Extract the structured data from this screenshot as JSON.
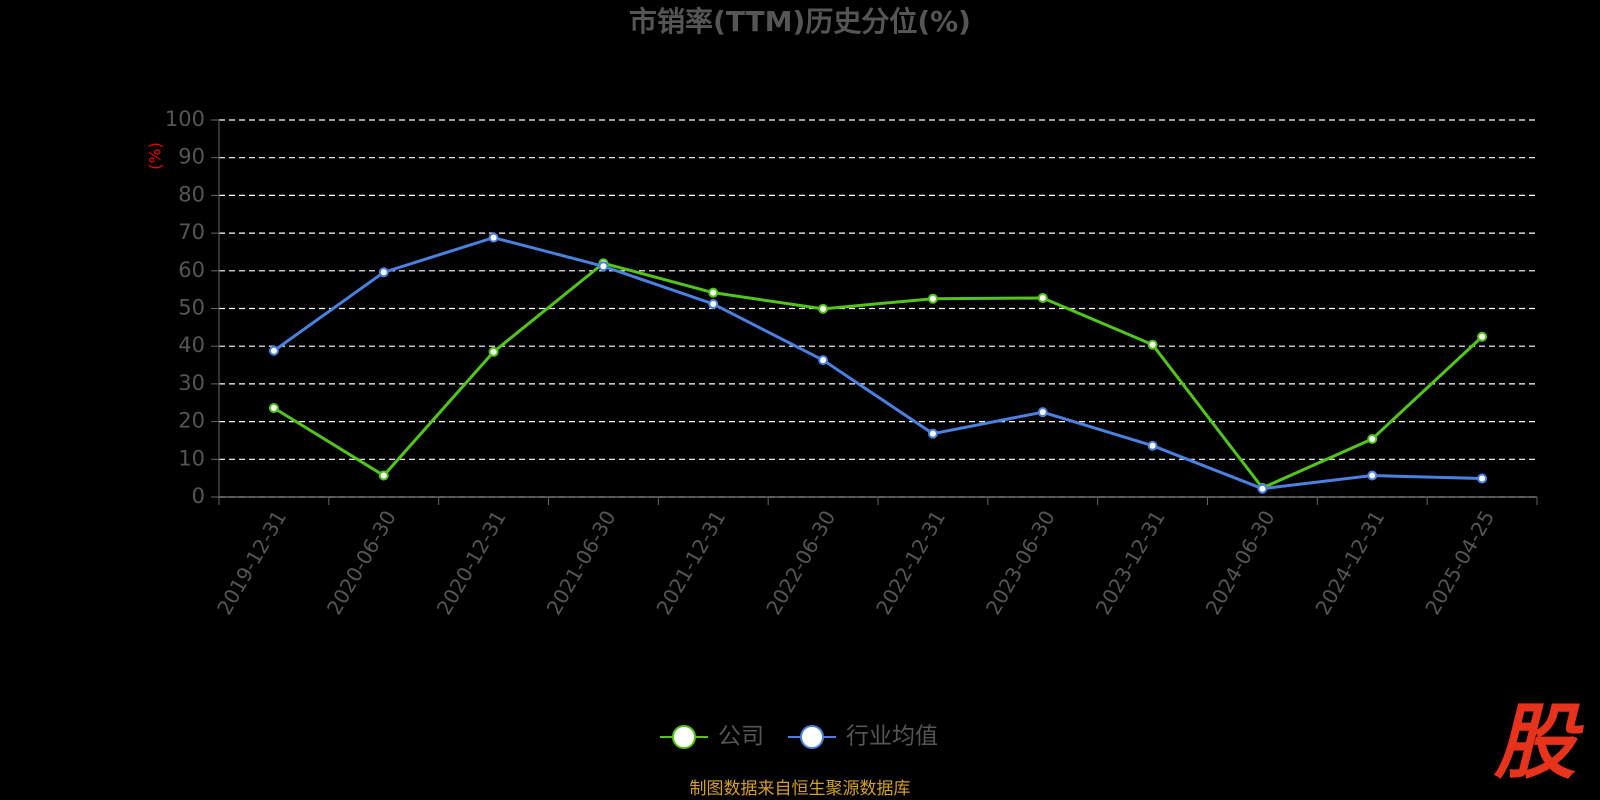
{
  "chart_data": {
    "type": "line",
    "title": "市销率(TTM)历史分位(%)",
    "y_axis_label": "(%)",
    "categories": [
      "2019-12-31",
      "2020-06-30",
      "2020-12-31",
      "2021-06-30",
      "2021-12-31",
      "2022-06-30",
      "2022-12-31",
      "2023-06-30",
      "2023-12-31",
      "2024-06-30",
      "2024-12-31",
      "2025-04-25"
    ],
    "series": [
      {
        "name": "公司",
        "color": "#52c41a",
        "values": [
          23.6,
          5.7,
          38.5,
          62,
          54.2,
          49.9,
          52.6,
          52.8,
          40.4,
          2.4,
          15.4,
          42.5
        ]
      },
      {
        "name": "行业均值",
        "color": "#4a80e0",
        "values": [
          38.8,
          59.6,
          68.8,
          61.2,
          51.2,
          36.3,
          16.8,
          22.5,
          13.6,
          2.2,
          5.7,
          4.9
        ]
      }
    ],
    "ylim": [
      0,
      100
    ],
    "yticks": [
      0,
      10,
      20,
      30,
      40,
      50,
      60,
      70,
      80,
      90,
      100
    ],
    "grid": true,
    "legend": "bottom",
    "source": "制图数据来自恒生聚源数据库",
    "logo": "股"
  }
}
